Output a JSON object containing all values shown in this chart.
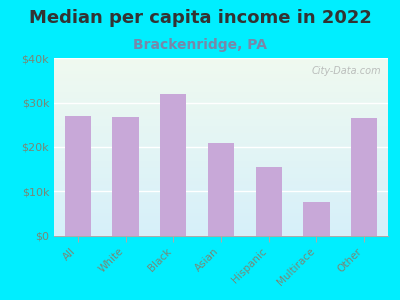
{
  "title": "Median per capita income in 2022",
  "subtitle": "Brackenridge, PA",
  "categories": [
    "All",
    "White",
    "Black",
    "Asian",
    "Hispanic",
    "Multirace",
    "Other"
  ],
  "values": [
    27000,
    26800,
    32000,
    21000,
    15500,
    7500,
    26500
  ],
  "bar_color": "#c8a8d8",
  "title_fontsize": 13,
  "subtitle_fontsize": 10,
  "subtitle_color": "#7788aa",
  "title_color": "#333333",
  "tick_label_color": "#778877",
  "background_outer": "#00eeff",
  "ylim": [
    0,
    40000
  ],
  "yticks": [
    0,
    10000,
    20000,
    30000,
    40000
  ],
  "ytick_labels": [
    "$0",
    "$10k",
    "$20k",
    "$30k",
    "$40k"
  ],
  "watermark": "City-Data.com"
}
